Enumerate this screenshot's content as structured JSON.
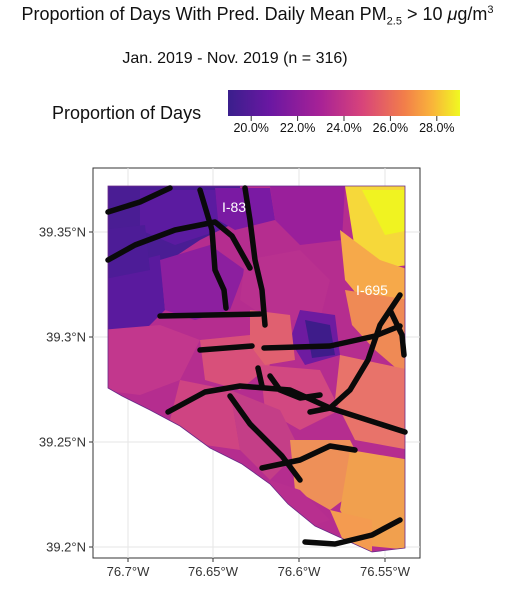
{
  "title": {
    "prefix": "Proportion of Days With Pred. Daily Mean PM",
    "subscript": "2.5",
    "middle": " > 10 ",
    "unit_mu": "μ",
    "unit_rest": "g/m",
    "superscript": "3"
  },
  "subtitle": "Jan. 2019 - Nov. 2019 (n = 316)",
  "legend": {
    "label": "Proportion of Days",
    "ticks": [
      "20.0%",
      "22.0%",
      "24.0%",
      "26.0%",
      "28.0%"
    ],
    "tick_values": [
      0.2,
      0.22,
      0.24,
      0.26,
      0.28
    ],
    "range": [
      0.19,
      0.29
    ],
    "colors": [
      "#3a1f8c",
      "#6a17a2",
      "#a82296",
      "#d8447a",
      "#f27e4a",
      "#f9b43a",
      "#f0f921"
    ]
  },
  "map": {
    "x_ticks": [
      "76.7°W",
      "76.65°W",
      "76.6°W",
      "76.55°W"
    ],
    "y_ticks": [
      "39.35°N",
      "39.3°N",
      "39.25°N",
      "39.2°N"
    ],
    "annotations": [
      "I-83",
      "I-695"
    ],
    "grid": true
  }
}
